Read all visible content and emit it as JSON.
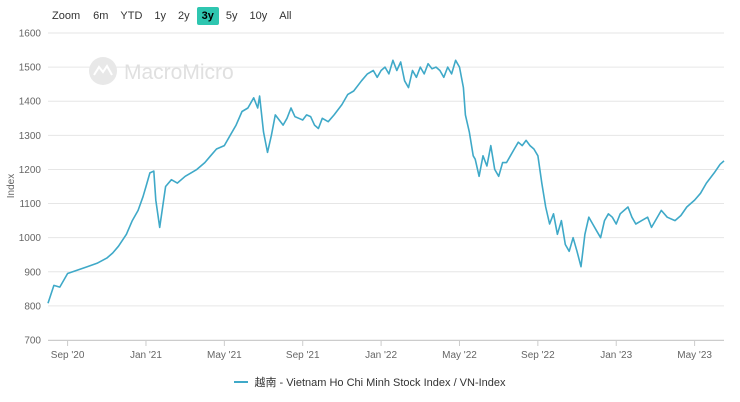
{
  "zoom": {
    "label": "Zoom",
    "buttons": [
      "6m",
      "YTD",
      "1y",
      "2y",
      "3y",
      "5y",
      "10y",
      "All"
    ],
    "active": "3y"
  },
  "watermark": "MacroMicro",
  "colors": {
    "line": "#3fa9c8",
    "grid": "#e6e6e6",
    "watermark": "#e3e3e3",
    "active": "#2ec6b0"
  },
  "chart_data": {
    "type": "line",
    "title": "",
    "xlabel": "",
    "ylabel": "Index",
    "ylim": [
      700,
      1600
    ],
    "yticks": [
      700,
      800,
      900,
      1000,
      1100,
      1200,
      1300,
      1400,
      1500,
      1600
    ],
    "xlim": [
      0,
      34.5
    ],
    "xticks": [
      {
        "pos": 1,
        "label": "Sep '20"
      },
      {
        "pos": 5,
        "label": "Jan '21"
      },
      {
        "pos": 9,
        "label": "May '21"
      },
      {
        "pos": 13,
        "label": "Sep '21"
      },
      {
        "pos": 17,
        "label": "Jan '22"
      },
      {
        "pos": 21,
        "label": "May '22"
      },
      {
        "pos": 25,
        "label": "Sep '22"
      },
      {
        "pos": 29,
        "label": "Jan '23"
      },
      {
        "pos": 33,
        "label": "May '23"
      }
    ],
    "series": [
      {
        "name": "越南 - Vietnam Ho Chi Minh Stock Index / VN-Index",
        "x": [
          0,
          0.3,
          0.6,
          1.0,
          1.5,
          2.0,
          2.5,
          3.0,
          3.3,
          3.6,
          4.0,
          4.3,
          4.6,
          4.85,
          5.0,
          5.2,
          5.4,
          5.5,
          5.7,
          6.0,
          6.3,
          6.6,
          7.0,
          7.3,
          7.6,
          8.0,
          8.3,
          8.6,
          9.0,
          9.3,
          9.6,
          9.9,
          10.2,
          10.5,
          10.7,
          10.8,
          11.0,
          11.2,
          11.4,
          11.6,
          11.8,
          12.0,
          12.2,
          12.4,
          12.6,
          12.8,
          13.0,
          13.2,
          13.4,
          13.6,
          13.8,
          14.0,
          14.3,
          14.6,
          15.0,
          15.3,
          15.6,
          16.0,
          16.3,
          16.6,
          16.8,
          17.0,
          17.2,
          17.4,
          17.6,
          17.8,
          18.0,
          18.2,
          18.4,
          18.6,
          18.8,
          19.0,
          19.2,
          19.4,
          19.6,
          19.8,
          20.0,
          20.2,
          20.4,
          20.6,
          20.8,
          21.0,
          21.2,
          21.3,
          21.5,
          21.7,
          21.8,
          22.0,
          22.2,
          22.4,
          22.6,
          22.8,
          23.0,
          23.2,
          23.4,
          23.6,
          23.8,
          24.0,
          24.2,
          24.4,
          24.6,
          24.8,
          25.0,
          25.2,
          25.4,
          25.6,
          25.8,
          26.0,
          26.2,
          26.4,
          26.6,
          26.8,
          27.0,
          27.2,
          27.4,
          27.6,
          27.8,
          28.0,
          28.2,
          28.4,
          28.6,
          28.8,
          29.0,
          29.2,
          29.4,
          29.6,
          29.8,
          30.0,
          30.3,
          30.6,
          30.8,
          31.0,
          31.3,
          31.6,
          32.0,
          32.3,
          32.6,
          33.0,
          33.3,
          33.6,
          34.0,
          34.3,
          34.5
        ],
        "values": [
          808,
          860,
          855,
          895,
          905,
          915,
          925,
          940,
          955,
          975,
          1010,
          1050,
          1080,
          1120,
          1150,
          1190,
          1195,
          1110,
          1030,
          1150,
          1170,
          1160,
          1180,
          1190,
          1200,
          1220,
          1240,
          1260,
          1270,
          1300,
          1330,
          1370,
          1380,
          1410,
          1380,
          1415,
          1310,
          1250,
          1300,
          1360,
          1345,
          1330,
          1350,
          1380,
          1355,
          1350,
          1345,
          1360,
          1355,
          1330,
          1320,
          1350,
          1340,
          1360,
          1390,
          1420,
          1430,
          1460,
          1480,
          1490,
          1470,
          1490,
          1500,
          1480,
          1520,
          1490,
          1515,
          1460,
          1440,
          1490,
          1470,
          1500,
          1480,
          1510,
          1495,
          1500,
          1490,
          1470,
          1500,
          1480,
          1520,
          1500,
          1440,
          1360,
          1310,
          1240,
          1230,
          1180,
          1240,
          1210,
          1270,
          1200,
          1180,
          1220,
          1220,
          1240,
          1260,
          1280,
          1270,
          1285,
          1270,
          1260,
          1240,
          1160,
          1090,
          1040,
          1070,
          1010,
          1050,
          980,
          960,
          1000,
          960,
          915,
          1010,
          1060,
          1040,
          1020,
          1000,
          1050,
          1070,
          1060,
          1040,
          1070,
          1080,
          1090,
          1060,
          1040,
          1050,
          1060,
          1030,
          1050,
          1080,
          1060,
          1050,
          1065,
          1090,
          1110,
          1130,
          1160,
          1190,
          1215,
          1225
        ]
      }
    ]
  }
}
